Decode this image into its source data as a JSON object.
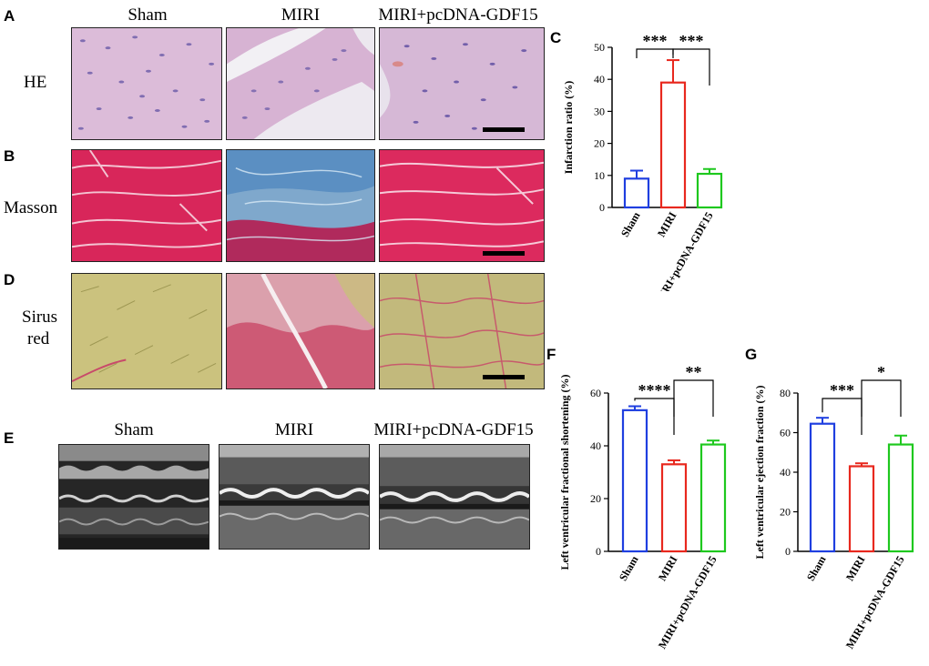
{
  "panels": {
    "A": {
      "letter": "A",
      "row_label": "HE"
    },
    "B": {
      "letter": "B",
      "row_label": "Masson"
    },
    "C": {
      "letter": "C"
    },
    "D": {
      "letter": "D",
      "row_label_line1": "Sirus",
      "row_label_line2": "red"
    },
    "E": {
      "letter": "E"
    },
    "F": {
      "letter": "F"
    },
    "G": {
      "letter": "G"
    }
  },
  "histology_columns": [
    "Sham",
    "MIRI",
    "MIRI+pcDNA-GDF15"
  ],
  "echo_columns": [
    "Sham",
    "MIRI",
    "MIRI+pcDNA-GDF15"
  ],
  "colors": {
    "sham": "#1f3fe0",
    "miri": "#e8281e",
    "gdf15": "#1ec81e",
    "he_bg": "#d9b7d6",
    "masson_red": "#d8265a",
    "masson_blue": "#5a8fc0",
    "sirius_yellow": "#c9c07a",
    "sirius_red": "#c83a5a"
  },
  "chart_data": [
    {
      "id": "C",
      "type": "bar",
      "categories": [
        "Sham",
        "MIRI",
        "MIRI+pcDNA-GDF15"
      ],
      "values": [
        9,
        39,
        10.5
      ],
      "errors": [
        2.5,
        7,
        1.5
      ],
      "ylabel": "Infarction ratio (%)",
      "ylim": [
        0,
        50
      ],
      "yticks": [
        0,
        10,
        20,
        30,
        40,
        50
      ],
      "significance": [
        {
          "from": 0,
          "to": 1,
          "label": "***"
        },
        {
          "from": 1,
          "to": 2,
          "label": "***"
        }
      ]
    },
    {
      "id": "F",
      "type": "bar",
      "categories": [
        "Sham",
        "MIRI",
        "MIRI+pcDNA-GDF15"
      ],
      "values": [
        53.5,
        33,
        40.5
      ],
      "errors": [
        1.5,
        1.5,
        1.5
      ],
      "ylabel": "Left ventricular fractional shortening (%)",
      "ylim": [
        0,
        60
      ],
      "yticks": [
        0,
        20,
        40,
        60
      ],
      "significance": [
        {
          "from": 0,
          "to": 1,
          "label": "****"
        },
        {
          "from": 1,
          "to": 2,
          "label": "**"
        }
      ]
    },
    {
      "id": "G",
      "type": "bar",
      "categories": [
        "Sham",
        "MIRI",
        "MIRI+pcDNA-GDF15"
      ],
      "values": [
        64.5,
        43,
        54
      ],
      "errors": [
        3,
        1.5,
        4.5
      ],
      "ylabel": "Left ventricular ejection fraction (%)",
      "ylim": [
        0,
        80
      ],
      "yticks": [
        0,
        20,
        40,
        60,
        80
      ],
      "significance": [
        {
          "from": 0,
          "to": 1,
          "label": "***"
        },
        {
          "from": 1,
          "to": 2,
          "label": "*"
        }
      ]
    }
  ]
}
